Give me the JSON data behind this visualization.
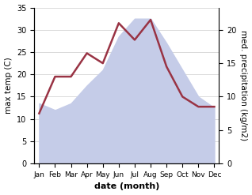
{
  "months": [
    "Jan",
    "Feb",
    "Mar",
    "Apr",
    "May",
    "Jun",
    "Jul",
    "Aug",
    "Sep",
    "Oct",
    "Nov",
    "Dec"
  ],
  "temp": [
    13.5,
    12.0,
    13.5,
    17.5,
    21.0,
    28.5,
    32.5,
    32.5,
    27.0,
    21.0,
    15.0,
    12.5
  ],
  "precip": [
    7.5,
    13.0,
    13.0,
    16.5,
    15.0,
    21.0,
    18.5,
    21.5,
    14.5,
    10.0,
    8.5,
    8.5
  ],
  "temp_fill_color": "#c5cce8",
  "precip_color": "#993344",
  "temp_ylim": [
    0,
    35
  ],
  "precip_ylim": [
    0,
    23.33
  ],
  "precip_yticks": [
    0,
    5,
    10,
    15,
    20
  ],
  "temp_yticks": [
    0,
    5,
    10,
    15,
    20,
    25,
    30,
    35
  ],
  "xlabel": "date (month)",
  "ylabel_left": "max temp (C)",
  "ylabel_right": "med. precipitation (kg/m2)",
  "grid_color": "#cccccc"
}
